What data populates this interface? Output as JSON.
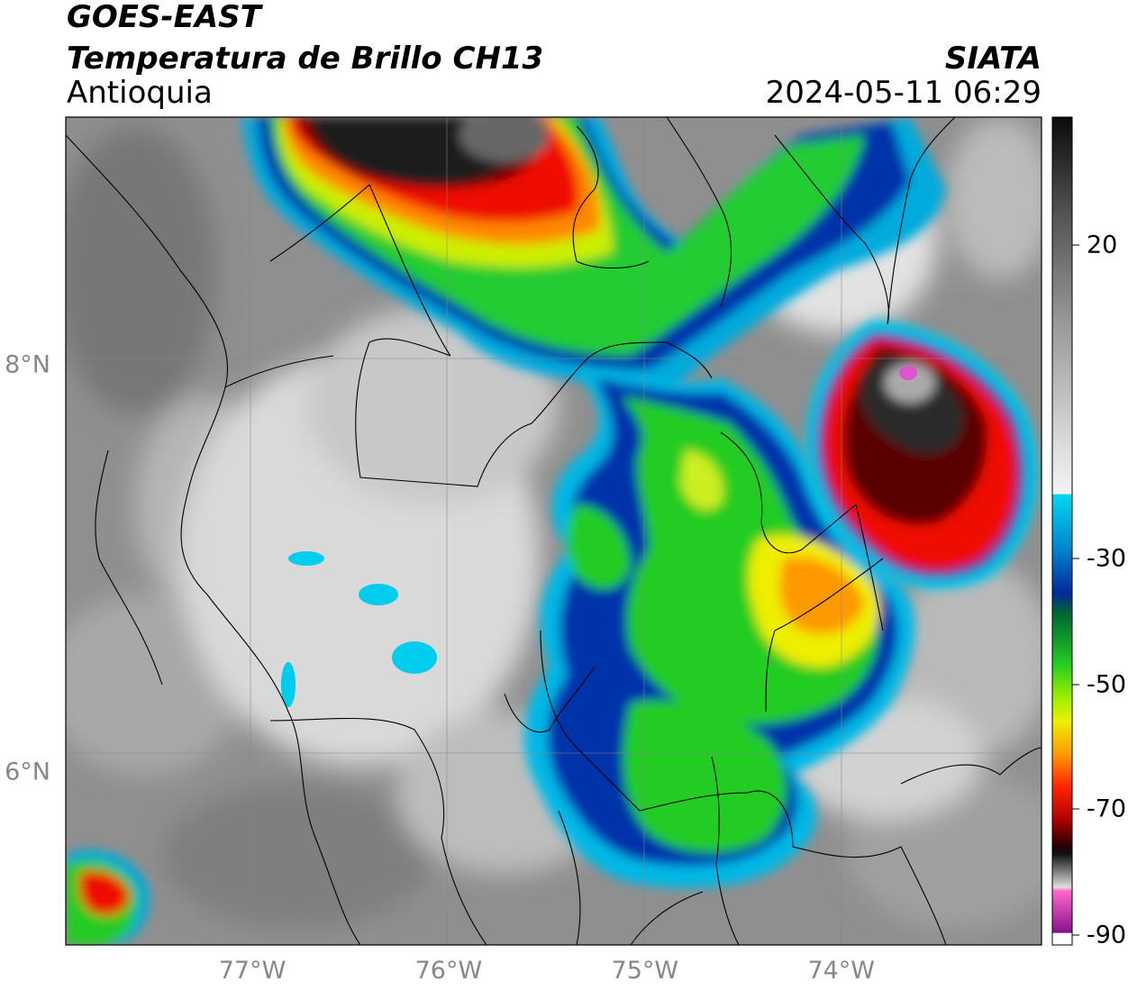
{
  "header": {
    "satellite": "GOES-EAST",
    "product": "Temperatura de Brillo CH13",
    "region": "Antioquia",
    "agency": "SIATA",
    "datetime": "2024-05-11 06:29"
  },
  "map": {
    "lat_ticks": [
      {
        "value": 8,
        "label": "8°N"
      },
      {
        "value": 6,
        "label": "6°N"
      }
    ],
    "lon_ticks": [
      {
        "value": -77,
        "label": "77°W"
      },
      {
        "value": -76,
        "label": "76°W"
      },
      {
        "value": -75,
        "label": "75°W"
      },
      {
        "value": -74,
        "label": "74°W"
      }
    ],
    "lon_range": [
      -77.95,
      -72.98
    ],
    "lat_range": [
      5.15,
      9.22
    ]
  },
  "colorbar": {
    "ticks": [
      {
        "value": 20,
        "label": "20"
      },
      {
        "value": -30,
        "label": "-30"
      },
      {
        "value": -50,
        "label": "-50"
      },
      {
        "value": -70,
        "label": "-70"
      },
      {
        "value": -90,
        "label": "-90"
      }
    ],
    "range": [
      -90,
      30
    ],
    "colors": {
      "warm_gray_top": "#111111",
      "mid_gray": "#9a9a9a",
      "light_gray": "#f2f2f2",
      "cyan": "#00ccee",
      "blue": "#0033aa",
      "green": "#22cc22",
      "yellow": "#eeee00",
      "orange": "#ff9900",
      "red": "#e8000a",
      "dark_red": "#5a0000",
      "magenta": "#dd44bb",
      "purple": "#8a1a8a"
    }
  }
}
